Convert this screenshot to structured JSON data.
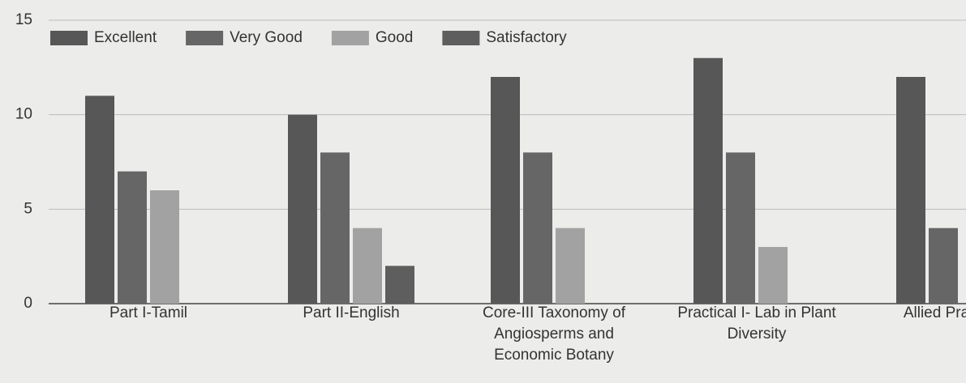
{
  "chart_data": {
    "type": "bar",
    "categories": [
      "Part I-Tamil",
      "Part II-English",
      "Core-III Taxonomy of Angiosperms and Economic Botany",
      "Practical I- Lab in Plant Diversity",
      "Allied Prac in Zo"
    ],
    "series": [
      {
        "name": "Excellent",
        "color": "#575757",
        "values": [
          11,
          10,
          12,
          13,
          12
        ]
      },
      {
        "name": "Very Good",
        "color": "#666666",
        "values": [
          7,
          8,
          8,
          8,
          4
        ]
      },
      {
        "name": "Good",
        "color": "#a2a2a2",
        "values": [
          6,
          4,
          4,
          3,
          null
        ]
      },
      {
        "name": "Satisfactory",
        "color": "#5e5e5e",
        "values": [
          0,
          2,
          0,
          0,
          null
        ]
      }
    ],
    "ylim": [
      0,
      15
    ],
    "yticks": [
      0,
      5,
      10,
      15
    ],
    "grid": true,
    "legend": "top-left"
  }
}
